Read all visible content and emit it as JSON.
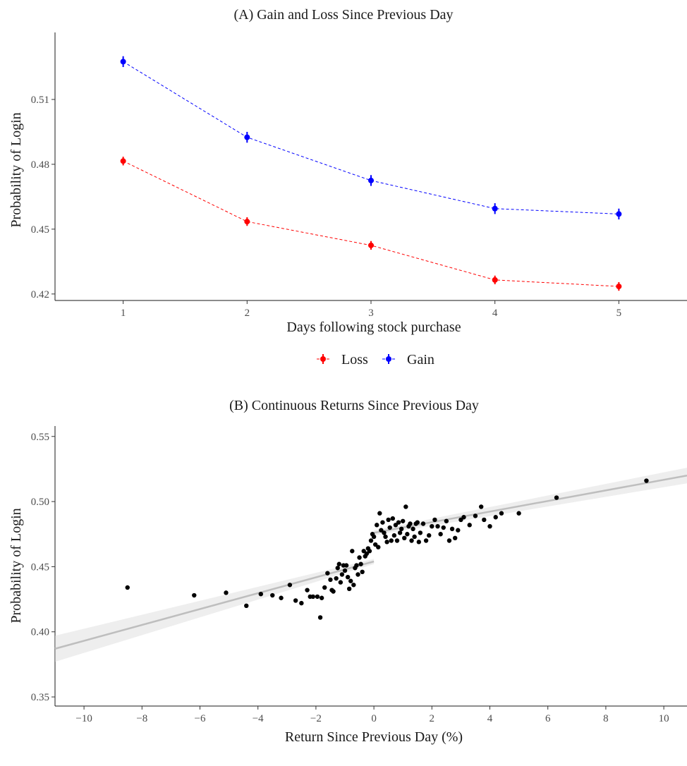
{
  "chart_data": [
    {
      "type": "line",
      "title": "(A) Gain and Loss Since Previous Day",
      "xlabel": "Days following stock purchase",
      "ylabel": "Probability of Login",
      "x": [
        1,
        2,
        3,
        4,
        5
      ],
      "xticks": [
        "1",
        "2",
        "3",
        "4",
        "5"
      ],
      "yticks": [
        "0.42",
        "0.45",
        "0.48",
        "0.51"
      ],
      "yticks_values": [
        0.42,
        0.45,
        0.48,
        0.51
      ],
      "xlim": [
        0.45,
        5.55
      ],
      "ylim": [
        0.417,
        0.541
      ],
      "grid": false,
      "legend_position": "bottom",
      "series": [
        {
          "name": "Loss",
          "color": "#ff0000",
          "values": [
            0.4815,
            0.4535,
            0.4425,
            0.4265,
            0.4235
          ],
          "ci": [
            0.002,
            0.002,
            0.002,
            0.002,
            0.002
          ]
        },
        {
          "name": "Gain",
          "color": "#0000ff",
          "values": [
            0.5275,
            0.4925,
            0.4725,
            0.4595,
            0.457
          ],
          "ci": [
            0.0025,
            0.0025,
            0.0025,
            0.0025,
            0.0025
          ]
        }
      ]
    },
    {
      "type": "scatter",
      "title": "(B) Continuous Returns Since Previous Day",
      "xlabel": "Return Since Previous Day (%)",
      "ylabel": "Probability of Login",
      "xticks": [
        "−10",
        "−8",
        "−6",
        "−4",
        "−2",
        "0",
        "2",
        "4",
        "6",
        "8",
        "10"
      ],
      "xticks_values": [
        -10,
        -8,
        -6,
        -4,
        -2,
        0,
        2,
        4,
        6,
        8,
        10
      ],
      "yticks": [
        "0.35",
        "0.40",
        "0.45",
        "0.50",
        "0.55"
      ],
      "yticks_values": [
        0.35,
        0.4,
        0.45,
        0.5,
        0.55
      ],
      "xlim": [
        -11,
        10.8
      ],
      "ylim": [
        0.343,
        0.558
      ],
      "grid": false,
      "point_color": "#000000",
      "fit_color": "#bebebe",
      "fit_lines": [
        {
          "x": [
            -11,
            0
          ],
          "y": [
            0.387,
            0.454
          ],
          "band": [
            0.01,
            0.002
          ]
        },
        {
          "x": [
            0,
            10.8
          ],
          "y": [
            0.476,
            0.52
          ],
          "band": [
            0.002,
            0.006
          ]
        }
      ],
      "points": [
        [
          -8.5,
          0.434
        ],
        [
          -6.2,
          0.428
        ],
        [
          -5.1,
          0.43
        ],
        [
          -4.4,
          0.42
        ],
        [
          -3.9,
          0.429
        ],
        [
          -3.5,
          0.428
        ],
        [
          -3.2,
          0.426
        ],
        [
          -2.9,
          0.436
        ],
        [
          -2.7,
          0.424
        ],
        [
          -2.5,
          0.422
        ],
        [
          -2.3,
          0.432
        ],
        [
          -2.2,
          0.427
        ],
        [
          -2.1,
          0.427
        ],
        [
          -1.95,
          0.427
        ],
        [
          -1.85,
          0.411
        ],
        [
          -1.8,
          0.426
        ],
        [
          -1.7,
          0.434
        ],
        [
          -1.6,
          0.445
        ],
        [
          -1.5,
          0.44
        ],
        [
          -1.45,
          0.432
        ],
        [
          -1.4,
          0.431
        ],
        [
          -1.3,
          0.441
        ],
        [
          -1.25,
          0.449
        ],
        [
          -1.2,
          0.452
        ],
        [
          -1.15,
          0.438
        ],
        [
          -1.1,
          0.444
        ],
        [
          -1.05,
          0.451
        ],
        [
          -1.0,
          0.447
        ],
        [
          -0.95,
          0.451
        ],
        [
          -0.9,
          0.442
        ],
        [
          -0.85,
          0.433
        ],
        [
          -0.8,
          0.439
        ],
        [
          -0.75,
          0.462
        ],
        [
          -0.7,
          0.436
        ],
        [
          -0.65,
          0.449
        ],
        [
          -0.6,
          0.451
        ],
        [
          -0.55,
          0.444
        ],
        [
          -0.5,
          0.457
        ],
        [
          -0.45,
          0.452
        ],
        [
          -0.4,
          0.446
        ],
        [
          -0.35,
          0.462
        ],
        [
          -0.3,
          0.458
        ],
        [
          -0.25,
          0.46
        ],
        [
          -0.2,
          0.464
        ],
        [
          -0.15,
          0.462
        ],
        [
          -0.1,
          0.47
        ],
        [
          -0.05,
          0.475
        ],
        [
          0.0,
          0.473
        ],
        [
          0.05,
          0.467
        ],
        [
          0.1,
          0.482
        ],
        [
          0.15,
          0.465
        ],
        [
          0.2,
          0.491
        ],
        [
          0.25,
          0.478
        ],
        [
          0.3,
          0.484
        ],
        [
          0.35,
          0.476
        ],
        [
          0.4,
          0.473
        ],
        [
          0.45,
          0.469
        ],
        [
          0.5,
          0.486
        ],
        [
          0.55,
          0.48
        ],
        [
          0.6,
          0.47
        ],
        [
          0.65,
          0.487
        ],
        [
          0.7,
          0.474
        ],
        [
          0.75,
          0.482
        ],
        [
          0.8,
          0.47
        ],
        [
          0.85,
          0.484
        ],
        [
          0.9,
          0.476
        ],
        [
          0.95,
          0.479
        ],
        [
          1.0,
          0.485
        ],
        [
          1.05,
          0.472
        ],
        [
          1.1,
          0.496
        ],
        [
          1.15,
          0.475
        ],
        [
          1.2,
          0.481
        ],
        [
          1.25,
          0.483
        ],
        [
          1.3,
          0.47
        ],
        [
          1.35,
          0.479
        ],
        [
          1.4,
          0.473
        ],
        [
          1.45,
          0.483
        ],
        [
          1.5,
          0.484
        ],
        [
          1.55,
          0.469
        ],
        [
          1.6,
          0.476
        ],
        [
          1.7,
          0.483
        ],
        [
          1.8,
          0.47
        ],
        [
          1.9,
          0.474
        ],
        [
          2.0,
          0.481
        ],
        [
          2.1,
          0.486
        ],
        [
          2.2,
          0.481
        ],
        [
          2.3,
          0.475
        ],
        [
          2.4,
          0.48
        ],
        [
          2.5,
          0.485
        ],
        [
          2.6,
          0.47
        ],
        [
          2.7,
          0.479
        ],
        [
          2.8,
          0.472
        ],
        [
          2.9,
          0.478
        ],
        [
          3.0,
          0.486
        ],
        [
          3.1,
          0.488
        ],
        [
          3.3,
          0.482
        ],
        [
          3.5,
          0.489
        ],
        [
          3.7,
          0.496
        ],
        [
          3.8,
          0.486
        ],
        [
          4.0,
          0.481
        ],
        [
          4.2,
          0.488
        ],
        [
          4.4,
          0.491
        ],
        [
          5.0,
          0.491
        ],
        [
          6.3,
          0.503
        ],
        [
          9.4,
          0.516
        ]
      ]
    }
  ]
}
